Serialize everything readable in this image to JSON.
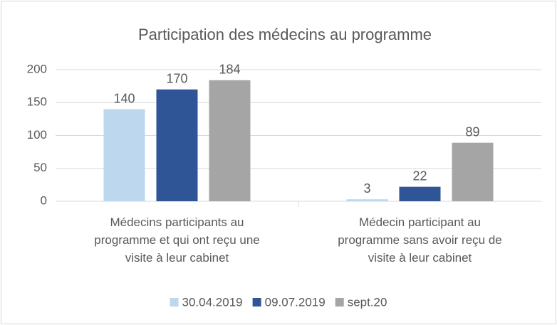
{
  "chart_data": {
    "type": "bar",
    "title": "Participation des médecins au programme",
    "categories": [
      "Médecins participants au programme et qui ont reçu une visite à leur cabinet",
      "Médecin participant au programme sans avoir reçu de visite à leur cabinet"
    ],
    "series": [
      {
        "name": "30.04.2019",
        "color": "#bdd7ee",
        "values": [
          140,
          3
        ]
      },
      {
        "name": "09.07.2019",
        "color": "#2f5597",
        "values": [
          170,
          22
        ]
      },
      {
        "name": "sept.20",
        "color": "#a5a5a5",
        "values": [
          184,
          89
        ]
      }
    ],
    "ylim": [
      0,
      200
    ],
    "yticks": [
      0,
      50,
      100,
      150,
      200
    ],
    "grid": true,
    "legend": "bottom"
  }
}
